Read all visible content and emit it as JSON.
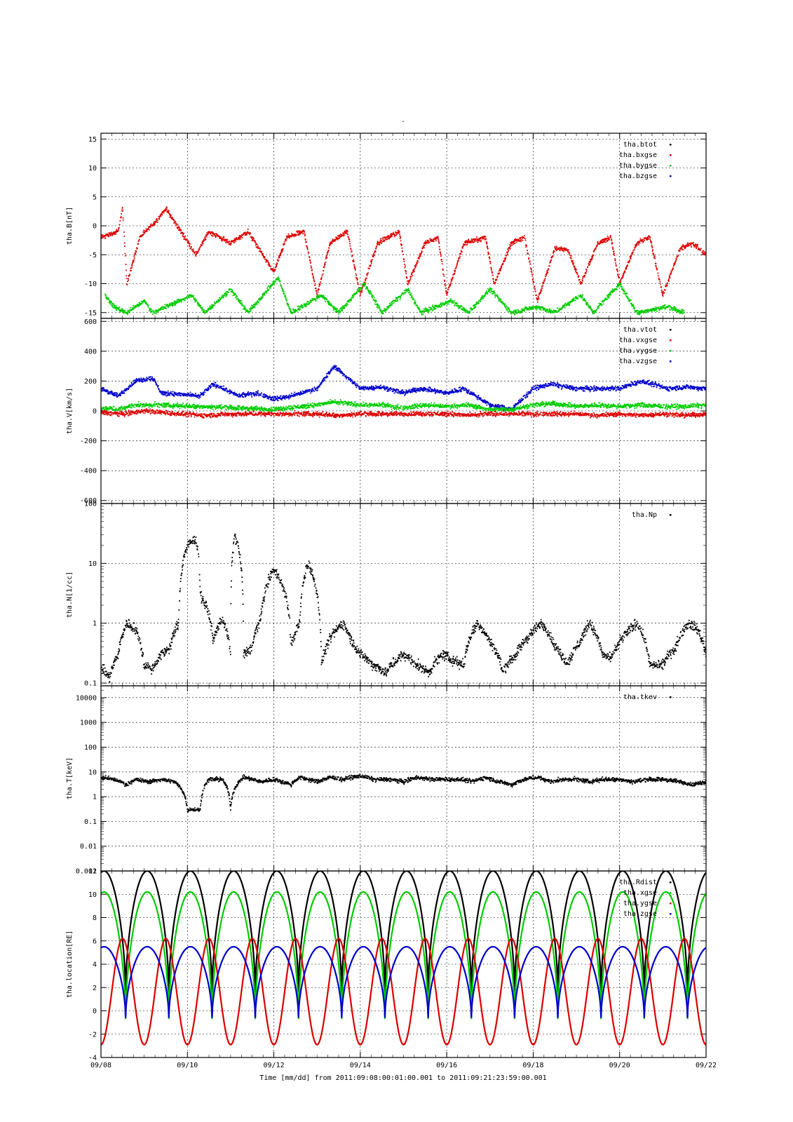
{
  "title": "-",
  "x_axis": {
    "label": "Time [mm/dd]  from 2011:09:08:00:01:00.001  to  2011:09:21:23:59:00.001",
    "range_days": [
      0,
      14
    ],
    "ticks": [
      "09/08",
      "09/10",
      "09/12",
      "09/14",
      "09/16",
      "09/18",
      "09/20",
      "09/22"
    ]
  },
  "colors": {
    "black": "#000000",
    "red": "#dd0000",
    "green": "#00cc00",
    "blue": "#0000cc"
  },
  "chart_data": [
    {
      "type": "scatter",
      "ylabel": "tha.B[nT]",
      "ylim": [
        -16,
        16
      ],
      "scale": "linear",
      "yticks": [
        15,
        10,
        5,
        0,
        -5,
        -10,
        -15
      ],
      "legend_position": "top-right",
      "series": [
        {
          "name": "tha.btot",
          "color": "#000000"
        },
        {
          "name": "tha.bxgse",
          "color": "#dd0000"
        },
        {
          "name": "tha.bygse",
          "color": "#00cc00"
        },
        {
          "name": "tha.bzgse",
          "color": "#0000cc"
        }
      ],
      "trend": {
        "tha.bxgse": [
          [
            0.0,
            -2
          ],
          [
            0.4,
            -1
          ],
          [
            0.5,
            3
          ],
          [
            0.6,
            -10
          ],
          [
            0.9,
            -2
          ],
          [
            1.3,
            1
          ],
          [
            1.5,
            3
          ],
          [
            2.2,
            -5
          ],
          [
            2.5,
            -1
          ],
          [
            3.0,
            -3
          ],
          [
            3.4,
            -1
          ],
          [
            4.0,
            -8
          ],
          [
            4.3,
            -2
          ],
          [
            4.7,
            -1
          ],
          [
            5.0,
            -12
          ],
          [
            5.3,
            -3
          ],
          [
            5.7,
            -1
          ],
          [
            6.0,
            -12
          ],
          [
            6.4,
            -3
          ],
          [
            6.9,
            -1
          ],
          [
            7.1,
            -10
          ],
          [
            7.5,
            -3
          ],
          [
            7.8,
            -2
          ],
          [
            8.0,
            -12
          ],
          [
            8.4,
            -3
          ],
          [
            8.9,
            -2
          ],
          [
            9.1,
            -10
          ],
          [
            9.5,
            -3
          ],
          [
            9.8,
            -2
          ],
          [
            10.1,
            -13
          ],
          [
            10.5,
            -4
          ],
          [
            10.8,
            -4
          ],
          [
            11.1,
            -10
          ],
          [
            11.5,
            -3
          ],
          [
            11.8,
            -2
          ],
          [
            12.0,
            -10
          ],
          [
            12.4,
            -3
          ],
          [
            12.7,
            -2
          ],
          [
            13.0,
            -12
          ],
          [
            13.4,
            -4
          ],
          [
            13.7,
            -3
          ],
          [
            14.0,
            -5
          ]
        ],
        "tha.bygse": [
          [
            0.1,
            -12
          ],
          [
            0.3,
            -14
          ],
          [
            0.6,
            -15
          ],
          [
            1.0,
            -13
          ],
          [
            1.2,
            -15
          ],
          [
            2.1,
            -12
          ],
          [
            2.4,
            -15
          ],
          [
            3.0,
            -11
          ],
          [
            3.4,
            -15
          ],
          [
            4.1,
            -9
          ],
          [
            4.4,
            -15
          ],
          [
            5.1,
            -12
          ],
          [
            5.5,
            -15
          ],
          [
            6.1,
            -10
          ],
          [
            6.5,
            -15
          ],
          [
            7.1,
            -11
          ],
          [
            7.4,
            -15
          ],
          [
            8.1,
            -13
          ],
          [
            8.5,
            -15
          ],
          [
            9.0,
            -11
          ],
          [
            9.5,
            -15
          ],
          [
            10.1,
            -14
          ],
          [
            10.5,
            -15
          ],
          [
            11.1,
            -12
          ],
          [
            11.4,
            -15
          ],
          [
            12.0,
            -10
          ],
          [
            12.4,
            -15
          ],
          [
            13.1,
            -14
          ],
          [
            13.5,
            -15
          ]
        ]
      }
    },
    {
      "type": "scatter",
      "ylabel": "tha.V[km/s]",
      "ylim": [
        -620,
        620
      ],
      "scale": "linear",
      "yticks": [
        600,
        400,
        200,
        0,
        -200,
        -400,
        -600
      ],
      "legend_position": "top-right",
      "series": [
        {
          "name": "tha.vtot",
          "color": "#000000"
        },
        {
          "name": "tha.vxgse",
          "color": "#dd0000"
        },
        {
          "name": "tha.vygse",
          "color": "#00cc00"
        },
        {
          "name": "tha.vzgse",
          "color": "#0000cc"
        }
      ],
      "trend": {
        "tha.vzgse": [
          [
            0.0,
            150
          ],
          [
            0.4,
            100
          ],
          [
            0.8,
            200
          ],
          [
            1.2,
            220
          ],
          [
            1.4,
            120
          ],
          [
            2.3,
            100
          ],
          [
            2.6,
            180
          ],
          [
            3.2,
            100
          ],
          [
            3.6,
            120
          ],
          [
            4.0,
            80
          ],
          [
            4.4,
            100
          ],
          [
            5.0,
            150
          ],
          [
            5.4,
            300
          ],
          [
            6.0,
            150
          ],
          [
            6.5,
            160
          ],
          [
            7.0,
            120
          ],
          [
            7.4,
            150
          ],
          [
            8.0,
            120
          ],
          [
            8.4,
            150
          ],
          [
            9.0,
            40
          ],
          [
            9.5,
            10
          ],
          [
            10.0,
            150
          ],
          [
            10.4,
            180
          ],
          [
            11.0,
            150
          ],
          [
            11.4,
            150
          ],
          [
            12.0,
            150
          ],
          [
            12.5,
            200
          ],
          [
            13.1,
            150
          ],
          [
            13.5,
            160
          ],
          [
            14.0,
            150
          ]
        ],
        "tha.vygse": [
          [
            0.0,
            20
          ],
          [
            0.4,
            10
          ],
          [
            0.8,
            40
          ],
          [
            1.3,
            40
          ],
          [
            2.3,
            30
          ],
          [
            3.2,
            20
          ],
          [
            4.0,
            10
          ],
          [
            5.0,
            40
          ],
          [
            5.4,
            60
          ],
          [
            6.0,
            40
          ],
          [
            6.5,
            40
          ],
          [
            7.0,
            20
          ],
          [
            7.5,
            40
          ],
          [
            8.0,
            30
          ],
          [
            8.5,
            40
          ],
          [
            9.0,
            10
          ],
          [
            9.5,
            10
          ],
          [
            10.0,
            40
          ],
          [
            10.5,
            50
          ],
          [
            11.0,
            30
          ],
          [
            11.5,
            40
          ],
          [
            12.0,
            30
          ],
          [
            12.5,
            40
          ],
          [
            13.0,
            30
          ],
          [
            13.5,
            30
          ],
          [
            14.0,
            40
          ]
        ],
        "tha.vxgse": [
          [
            0.0,
            -10
          ],
          [
            0.5,
            -20
          ],
          [
            1.0,
            0
          ],
          [
            1.4,
            -10
          ],
          [
            2.3,
            -30
          ],
          [
            3.2,
            -20
          ],
          [
            4.0,
            -20
          ],
          [
            5.0,
            -20
          ],
          [
            5.5,
            -30
          ],
          [
            6.0,
            -20
          ],
          [
            6.5,
            -20
          ],
          [
            7.0,
            -20
          ],
          [
            7.5,
            -20
          ],
          [
            8.0,
            -20
          ],
          [
            8.5,
            -30
          ],
          [
            9.0,
            -20
          ],
          [
            9.5,
            -20
          ],
          [
            10.0,
            -20
          ],
          [
            10.5,
            -20
          ],
          [
            11.0,
            -20
          ],
          [
            11.5,
            -30
          ],
          [
            12.0,
            -20
          ],
          [
            12.5,
            -30
          ],
          [
            13.0,
            -20
          ],
          [
            13.5,
            -30
          ],
          [
            14.0,
            -20
          ]
        ]
      }
    },
    {
      "type": "scatter",
      "ylabel": "tha.N[1/cc]",
      "ylim": [
        0.09,
        100
      ],
      "scale": "log",
      "yticks": [
        100,
        10,
        1,
        0.1
      ],
      "legend_position": "top-right",
      "series": [
        {
          "name": "tha.Np",
          "color": "#000000"
        }
      ],
      "trend": {
        "tha.Np": [
          [
            0.0,
            0.18
          ],
          [
            0.2,
            0.12
          ],
          [
            0.4,
            0.3
          ],
          [
            0.6,
            1.0
          ],
          [
            0.8,
            0.8
          ],
          [
            1.0,
            0.2
          ],
          [
            1.2,
            0.17
          ],
          [
            1.4,
            0.3
          ],
          [
            1.6,
            0.4
          ],
          [
            1.8,
            1.0
          ],
          [
            2.0,
            20
          ],
          [
            2.2,
            25
          ],
          [
            2.3,
            3
          ],
          [
            2.6,
            0.5
          ],
          [
            2.8,
            1.2
          ],
          [
            3.0,
            0.3
          ],
          [
            3.1,
            30
          ],
          [
            3.3,
            0.3
          ],
          [
            3.5,
            0.4
          ],
          [
            3.7,
            1.2
          ],
          [
            4.0,
            8
          ],
          [
            4.4,
            0.4
          ],
          [
            4.6,
            1.0
          ],
          [
            4.8,
            10
          ],
          [
            5.0,
            3
          ],
          [
            5.1,
            0.2
          ],
          [
            5.4,
            0.7
          ],
          [
            5.6,
            1.0
          ],
          [
            5.8,
            0.5
          ],
          [
            6.0,
            0.3
          ],
          [
            6.3,
            0.2
          ],
          [
            6.6,
            0.15
          ],
          [
            7.0,
            0.3
          ],
          [
            7.3,
            0.2
          ],
          [
            7.6,
            0.15
          ],
          [
            7.9,
            0.3
          ],
          [
            8.1,
            0.25
          ],
          [
            8.4,
            0.2
          ],
          [
            8.7,
            1.0
          ],
          [
            9.0,
            0.5
          ],
          [
            9.3,
            0.15
          ],
          [
            9.6,
            0.3
          ],
          [
            9.9,
            0.6
          ],
          [
            10.2,
            1.0
          ],
          [
            10.5,
            0.4
          ],
          [
            10.8,
            0.2
          ],
          [
            11.1,
            0.5
          ],
          [
            11.3,
            1.0
          ],
          [
            11.6,
            0.3
          ],
          [
            11.8,
            0.25
          ],
          [
            12.1,
            0.6
          ],
          [
            12.4,
            1.0
          ],
          [
            12.7,
            0.2
          ],
          [
            13.0,
            0.2
          ],
          [
            13.3,
            0.4
          ],
          [
            13.6,
            1.0
          ],
          [
            13.8,
            0.8
          ],
          [
            14.0,
            0.3
          ]
        ]
      }
    },
    {
      "type": "scatter",
      "ylabel": "tha.T[keV]",
      "ylim": [
        0.001,
        30000
      ],
      "scale": "log",
      "yticks": [
        "10000",
        "1000",
        "100",
        "10",
        "1",
        "0.1",
        "0.01",
        "0.001"
      ],
      "legend_position": "top-right",
      "series": [
        {
          "name": "tha.tkev",
          "color": "#000000"
        }
      ],
      "trend": {
        "tha.tkev": [
          [
            0.0,
            6
          ],
          [
            0.3,
            5
          ],
          [
            0.6,
            3
          ],
          [
            0.8,
            5
          ],
          [
            1.1,
            4
          ],
          [
            1.4,
            5
          ],
          [
            1.7,
            4
          ],
          [
            2.0,
            0.3
          ],
          [
            2.3,
            0.3
          ],
          [
            2.5,
            5
          ],
          [
            2.8,
            5
          ],
          [
            3.0,
            0.3
          ],
          [
            3.3,
            6
          ],
          [
            3.7,
            4
          ],
          [
            4.0,
            5
          ],
          [
            4.4,
            3
          ],
          [
            4.6,
            6
          ],
          [
            5.0,
            4
          ],
          [
            5.3,
            6
          ],
          [
            5.6,
            5
          ],
          [
            6.0,
            7
          ],
          [
            6.3,
            5
          ],
          [
            6.7,
            5
          ],
          [
            7.0,
            4
          ],
          [
            7.3,
            6
          ],
          [
            7.6,
            5
          ],
          [
            8.0,
            5
          ],
          [
            8.3,
            5
          ],
          [
            8.6,
            4
          ],
          [
            8.9,
            6
          ],
          [
            9.2,
            4
          ],
          [
            9.5,
            3
          ],
          [
            9.8,
            5
          ],
          [
            10.1,
            6
          ],
          [
            10.4,
            4
          ],
          [
            10.7,
            5
          ],
          [
            11.0,
            5
          ],
          [
            11.3,
            4
          ],
          [
            11.6,
            5
          ],
          [
            12.0,
            5
          ],
          [
            12.3,
            4
          ],
          [
            12.7,
            5
          ],
          [
            13.0,
            5
          ],
          [
            13.4,
            4
          ],
          [
            13.7,
            3
          ],
          [
            14.0,
            4
          ]
        ]
      }
    },
    {
      "type": "line",
      "ylabel": "tha.location[RE]",
      "ylim": [
        -4,
        12
      ],
      "scale": "linear",
      "yticks": [
        12,
        10,
        8,
        6,
        4,
        2,
        0,
        -2,
        -4
      ],
      "legend_position": "top-right",
      "orbit_period_days": 1.0,
      "perigee_time_days": 0.57,
      "series": [
        {
          "name": "tha.Rdist",
          "color": "#000000",
          "apogee": 12.0,
          "perigee": 1.5
        },
        {
          "name": "tha.xgse",
          "color": "#00cc00",
          "apogee": 10.2,
          "perigee": -0.7
        },
        {
          "name": "tha.ygse",
          "color": "#dd0000",
          "max": 6.2,
          "min": -2.9
        },
        {
          "name": "tha.zgse",
          "color": "#0000cc",
          "apogee": 5.5,
          "perigee": -0.6
        }
      ]
    }
  ]
}
